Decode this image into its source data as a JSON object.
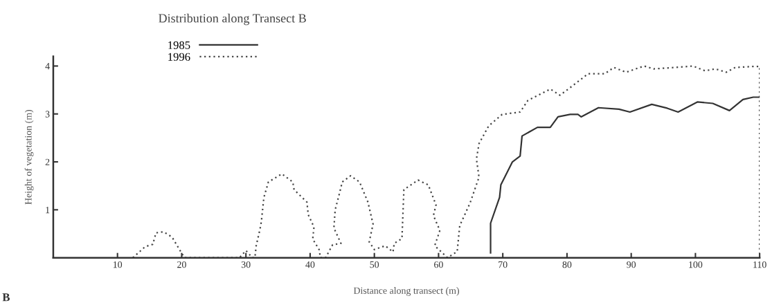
{
  "chart_data": {
    "type": "line",
    "title": "Distribution along Transect B",
    "xlabel": "Distance along transect (m)",
    "ylabel": "Height of vegetation (m)",
    "xlim": [
      0,
      110
    ],
    "ylim": [
      0,
      4.2
    ],
    "xticks": [
      10,
      20,
      30,
      40,
      50,
      60,
      70,
      80,
      90,
      100,
      110
    ],
    "yticks": [
      1,
      2,
      3,
      4
    ],
    "grid": false,
    "legend": "top left",
    "marker": "none",
    "annotations": [
      "B"
    ],
    "series": [
      {
        "name": "1985",
        "color": "#333333",
        "line_style": "solid",
        "x": [
          68.1,
          68.1,
          69.5,
          69.7,
          71.5,
          72.7,
          73.0,
          75.4,
          77.4,
          78.6,
          80.5,
          81.7,
          82.2,
          84.9,
          88.1,
          89.8,
          93.2,
          95.6,
          97.3,
          100.3,
          102.7,
          105.3,
          107.4,
          109.0,
          110.0
        ],
        "values": [
          0.1,
          0.72,
          1.26,
          1.52,
          2.0,
          2.12,
          2.54,
          2.72,
          2.72,
          2.94,
          2.99,
          2.99,
          2.94,
          3.13,
          3.1,
          3.04,
          3.2,
          3.12,
          3.04,
          3.25,
          3.22,
          3.07,
          3.3,
          3.35,
          3.35
        ]
      },
      {
        "name": "1996",
        "color": "#444444",
        "line_style": "dotted",
        "x": [
          12.4,
          14.3,
          15.5,
          16.0,
          17.2,
          18.5,
          20.1,
          20.5,
          29.0,
          30.0,
          31.0,
          31.4,
          31.6,
          32.2,
          32.4,
          32.8,
          33.5,
          35.6,
          37.3,
          37.5,
          39.5,
          39.7,
          40.6,
          40.4,
          41.4,
          41.6,
          42.4,
          43.5,
          44.8,
          43.7,
          43.9,
          44.6,
          45.0,
          46.3,
          47.7,
          49.0,
          49.8,
          49.2,
          50.0,
          51.7,
          52.9,
          53.1,
          54.3,
          54.6,
          56.8,
          58.4,
          59.6,
          59.2,
          60.2,
          59.4,
          61.4,
          62.9,
          63.3,
          64.9,
          66.3,
          65.9,
          66.3,
          67.8,
          69.9,
          72.7,
          73.9,
          77.4,
          78.9,
          80.5,
          83.3,
          85.9,
          87.3,
          89.2,
          92.0,
          93.5,
          96.8,
          99.6,
          101.5,
          103.1,
          104.8,
          106.2,
          109.0,
          110.0,
          110.0
        ],
        "values": [
          0,
          0.23,
          0.28,
          0.52,
          0.54,
          0.43,
          0.07,
          0,
          0,
          0.15,
          0,
          0,
          0.25,
          0.6,
          0.75,
          1.26,
          1.58,
          1.75,
          1.58,
          1.42,
          1.16,
          0.9,
          0.64,
          0.39,
          0.17,
          0,
          0,
          0.27,
          0.3,
          0.62,
          1.0,
          1.36,
          1.58,
          1.71,
          1.58,
          1.16,
          0.7,
          0.33,
          0.17,
          0.25,
          0.12,
          0.3,
          0.4,
          1.42,
          1.62,
          1.52,
          1.1,
          0.88,
          0.57,
          0.25,
          0,
          0.13,
          0.67,
          1.14,
          1.68,
          2.06,
          2.38,
          2.75,
          2.99,
          3.04,
          3.28,
          3.52,
          3.39,
          3.55,
          3.84,
          3.84,
          3.97,
          3.87,
          4.0,
          3.94,
          3.97,
          4.0,
          3.9,
          3.94,
          3.87,
          3.97,
          3.99,
          3.99,
          0
        ]
      }
    ]
  }
}
